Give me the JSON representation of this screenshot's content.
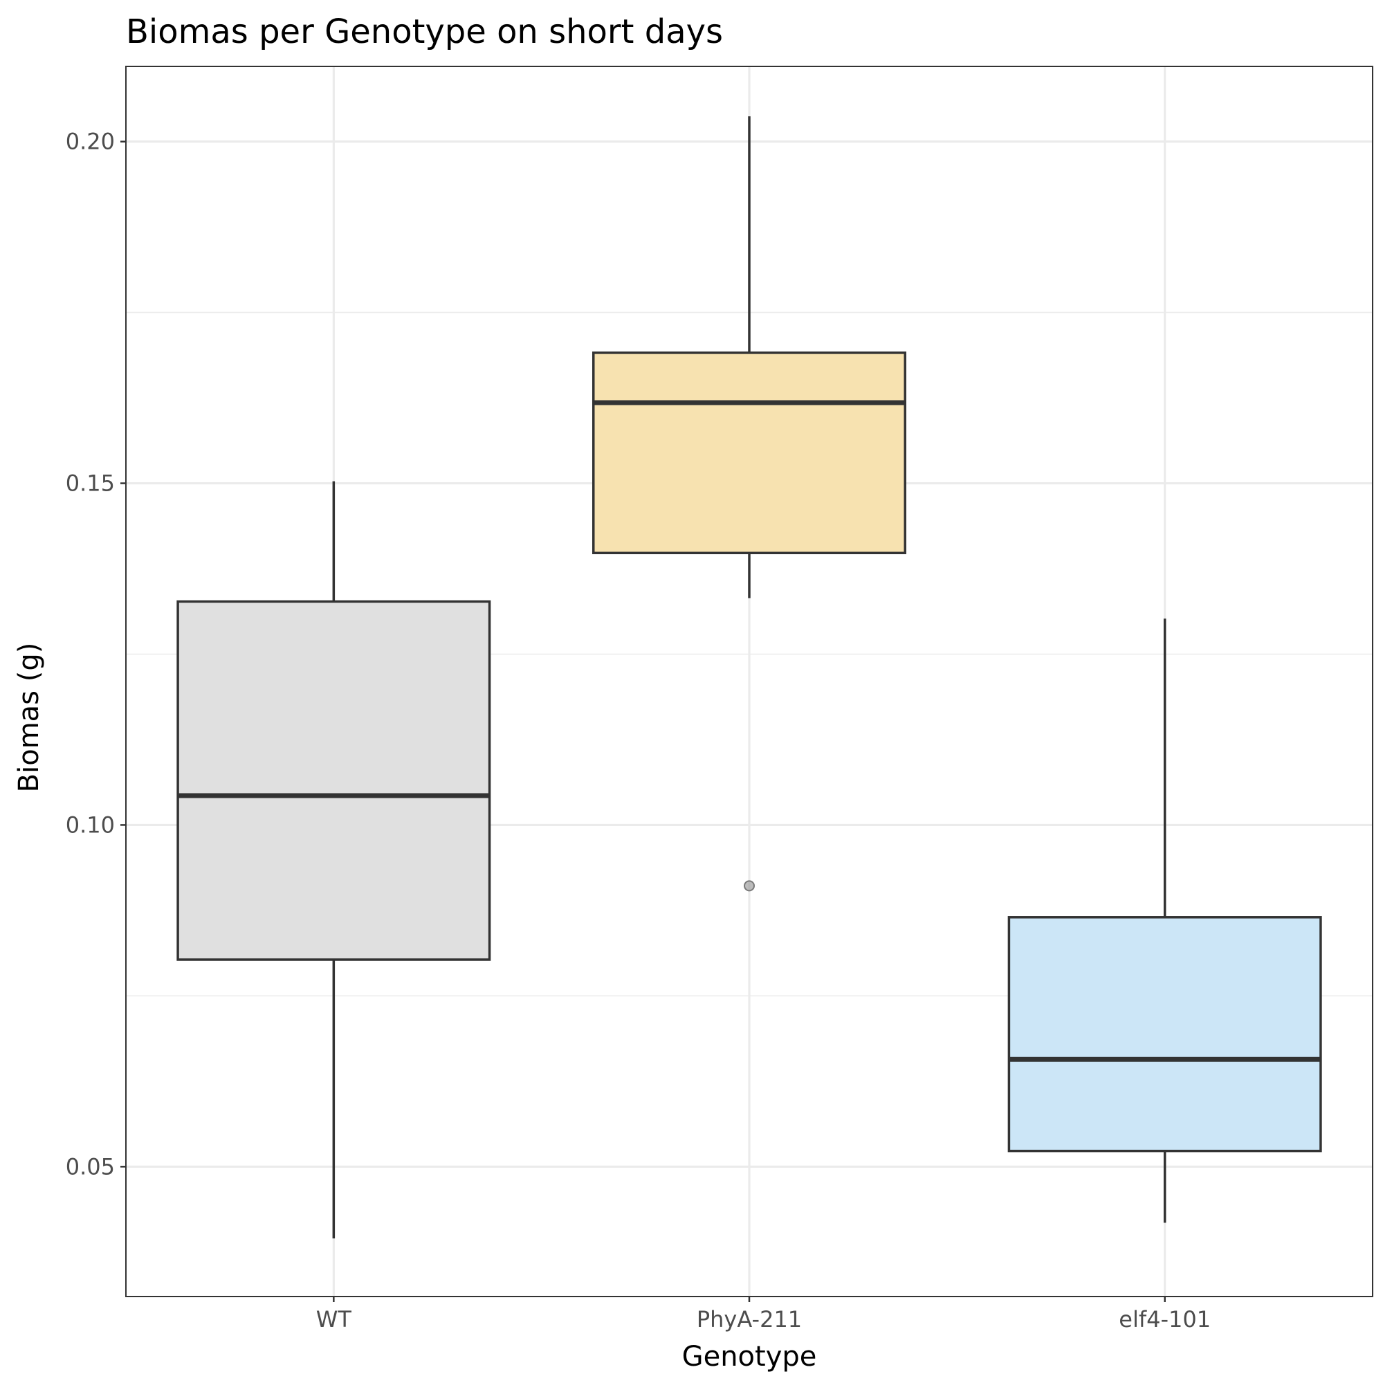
{
  "chart_data": {
    "type": "box",
    "title": "Biomas per Genotype on short days",
    "xlabel": "Genotype",
    "ylabel": "Biomas (g)",
    "ylim": [
      0.031,
      0.211
    ],
    "yticks": [
      0.05,
      0.1,
      0.15,
      0.2
    ],
    "ytick_labels": [
      "0.05",
      "0.10",
      "0.15",
      "0.20"
    ],
    "minor_yticks": [
      0.075,
      0.125,
      0.175
    ],
    "grid": true,
    "categories": [
      "WT",
      "PhyA-211",
      "elf4-101"
    ],
    "boxes": [
      {
        "category": "WT",
        "whisker_low": 0.0395,
        "q1": 0.0803,
        "median": 0.1043,
        "q3": 0.1327,
        "whisker_high": 0.1503,
        "fill": "#e0e0e0",
        "outliers": []
      },
      {
        "category": "PhyA-211",
        "whisker_low": 0.1332,
        "q1": 0.1398,
        "median": 0.1618,
        "q3": 0.1691,
        "whisker_high": 0.2037,
        "fill": "#f7e2b0",
        "outliers": [
          0.0911
        ]
      },
      {
        "category": "elf4-101",
        "whisker_low": 0.0418,
        "q1": 0.0523,
        "median": 0.0657,
        "q3": 0.0865,
        "whisker_high": 0.1302,
        "fill": "#cce6f7",
        "outliers": []
      }
    ]
  }
}
